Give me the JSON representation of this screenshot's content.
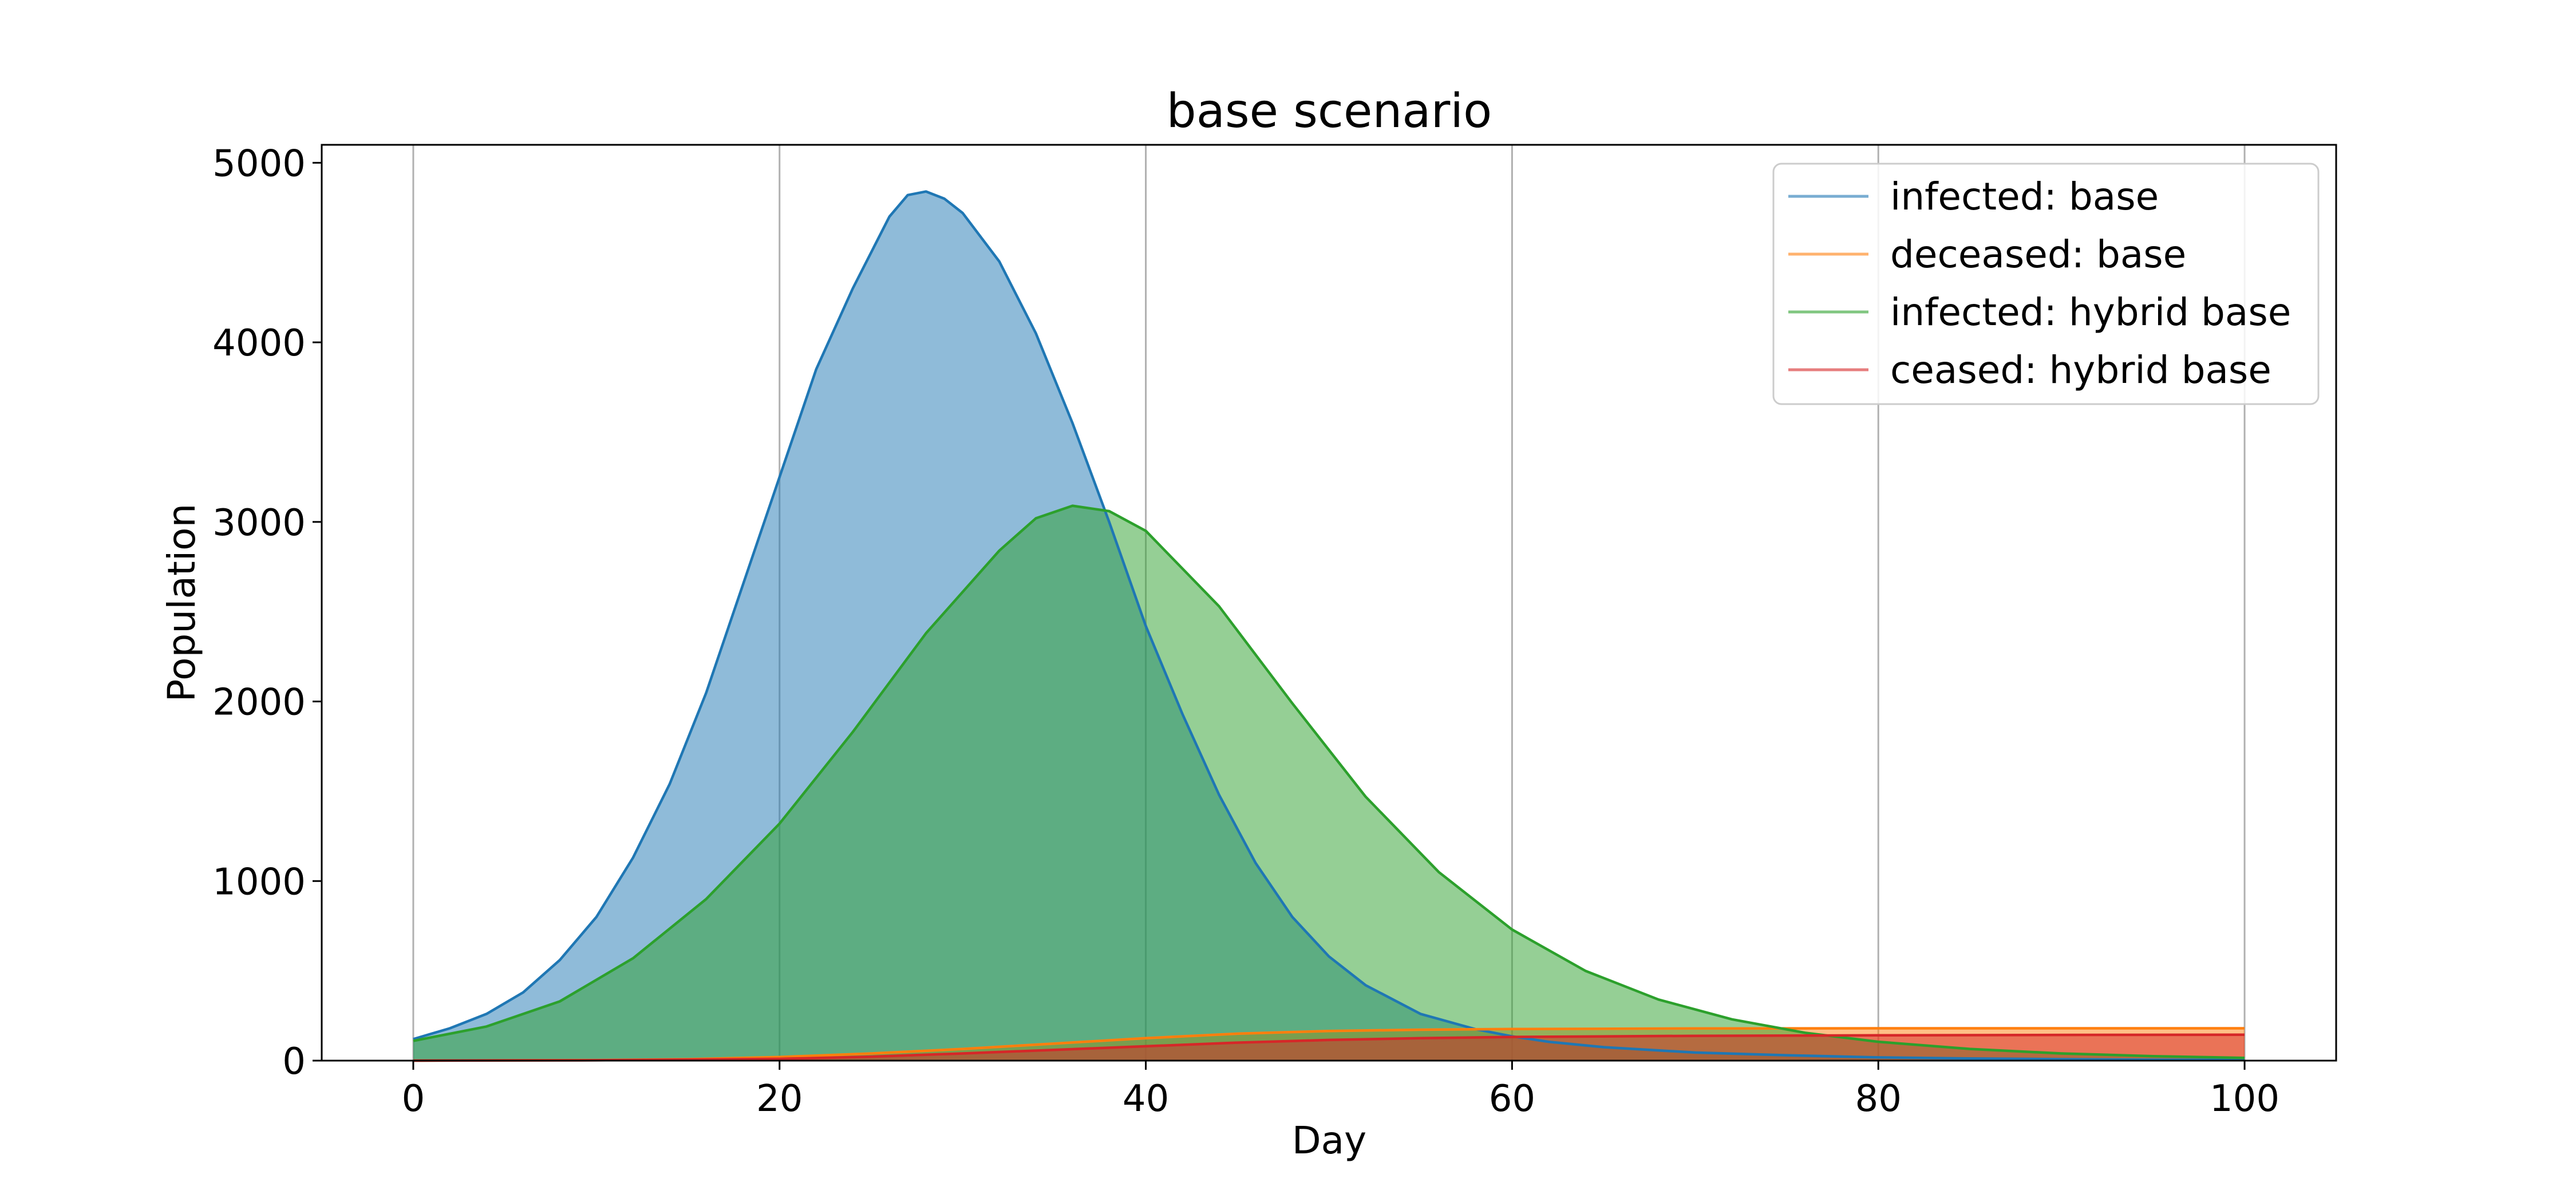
{
  "chart_data": {
    "type": "area",
    "title": "base scenario",
    "xlabel": "Day",
    "ylabel": "Population",
    "xlim": [
      -5,
      105
    ],
    "ylim": [
      0,
      5100
    ],
    "xticks": [
      0,
      20,
      40,
      60,
      80,
      100
    ],
    "yticks": [
      0,
      1000,
      2000,
      3000,
      4000,
      5000
    ],
    "grid": "vertical",
    "legend_position": "top-right",
    "series": [
      {
        "name": "infected: base",
        "color": "#1f77b4",
        "x": [
          0,
          2,
          4,
          6,
          8,
          10,
          12,
          14,
          16,
          18,
          20,
          22,
          24,
          26,
          27,
          28,
          29,
          30,
          32,
          34,
          36,
          38,
          40,
          42,
          44,
          46,
          48,
          50,
          52,
          55,
          58,
          60,
          62,
          65,
          70,
          75,
          80,
          85,
          90,
          95,
          100
        ],
        "y": [
          120,
          180,
          260,
          380,
          560,
          800,
          1130,
          1540,
          2050,
          2650,
          3250,
          3850,
          4300,
          4700,
          4820,
          4840,
          4800,
          4720,
          4450,
          4050,
          3550,
          3000,
          2420,
          1930,
          1480,
          1100,
          800,
          580,
          420,
          260,
          175,
          135,
          105,
          75,
          45,
          30,
          18,
          12,
          8,
          5,
          4
        ]
      },
      {
        "name": "deceased: base",
        "color": "#ff7f0e",
        "x": [
          0,
          10,
          15,
          20,
          25,
          30,
          35,
          40,
          45,
          50,
          55,
          60,
          70,
          80,
          90,
          100
        ],
        "y": [
          0,
          3,
          8,
          20,
          40,
          65,
          95,
          125,
          150,
          165,
          172,
          176,
          179,
          180,
          180,
          180
        ]
      },
      {
        "name": "infected: hybrid base",
        "color": "#2ca02c",
        "x": [
          0,
          4,
          8,
          12,
          16,
          20,
          24,
          28,
          32,
          34,
          36,
          38,
          40,
          44,
          48,
          52,
          56,
          60,
          64,
          68,
          72,
          76,
          80,
          85,
          90,
          95,
          100
        ],
        "y": [
          110,
          190,
          330,
          570,
          900,
          1320,
          1830,
          2380,
          2840,
          3020,
          3090,
          3060,
          2950,
          2530,
          1990,
          1470,
          1050,
          730,
          500,
          340,
          230,
          155,
          105,
          65,
          40,
          25,
          15
        ]
      },
      {
        "name": "ceased: hybrid base",
        "color": "#d62728",
        "x": [
          0,
          10,
          20,
          25,
          30,
          35,
          40,
          45,
          50,
          55,
          60,
          70,
          80,
          90,
          100
        ],
        "y": [
          0,
          2,
          10,
          22,
          40,
          60,
          80,
          100,
          115,
          125,
          132,
          138,
          141,
          143,
          144
        ]
      }
    ]
  }
}
